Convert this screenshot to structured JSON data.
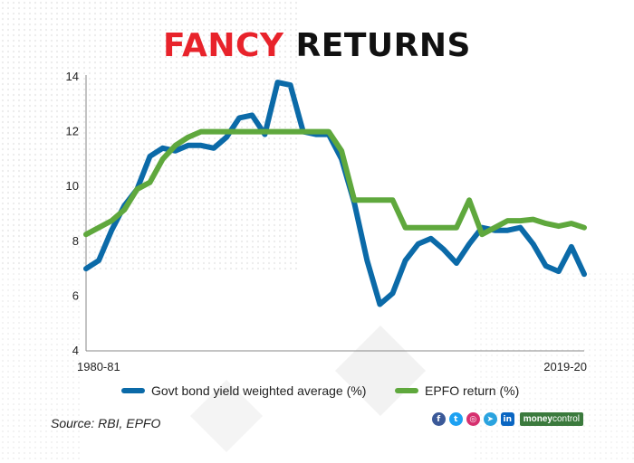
{
  "title": {
    "part1": "FANCY",
    "part2": "RETURNS"
  },
  "source": "Source: RBI, EPFO",
  "colors": {
    "govt": "#0b6aa8",
    "epfo": "#5fa83d",
    "title_red": "#e8232b",
    "axis": "#888888"
  },
  "social": {
    "icons": [
      {
        "name": "facebook-icon",
        "glyph": "f",
        "color": "#3b5998"
      },
      {
        "name": "twitter-icon",
        "glyph": "t",
        "color": "#1da1f2"
      },
      {
        "name": "instagram-icon",
        "glyph": "◎",
        "color": "#d6306f"
      },
      {
        "name": "telegram-icon",
        "glyph": "➤",
        "color": "#2aa3df"
      },
      {
        "name": "linkedin-icon",
        "glyph": "in",
        "color": "#0a66c2"
      }
    ],
    "brand_part1": "money",
    "brand_part2": "control"
  },
  "chart_data": {
    "type": "line",
    "x_first_label": "1980-81",
    "x_last_label": "2019-20",
    "x": [
      1980,
      1981,
      1982,
      1983,
      1984,
      1985,
      1986,
      1987,
      1988,
      1989,
      1990,
      1991,
      1992,
      1993,
      1994,
      1995,
      1996,
      1997,
      1998,
      1999,
      2000,
      2001,
      2002,
      2003,
      2004,
      2005,
      2006,
      2007,
      2008,
      2009,
      2010,
      2011,
      2012,
      2013,
      2014,
      2015,
      2016,
      2017,
      2018,
      2019
    ],
    "ylim": [
      4,
      14
    ],
    "yticks": [
      4,
      6,
      8,
      10,
      12,
      14
    ],
    "series": [
      {
        "name": "Govt bond yield weighted average (%)",
        "key": "govt",
        "values": [
          7.0,
          7.3,
          8.4,
          9.3,
          9.9,
          11.1,
          11.4,
          11.3,
          11.5,
          11.5,
          11.4,
          11.8,
          12.5,
          12.6,
          11.9,
          13.8,
          13.7,
          12.0,
          11.9,
          11.9,
          11.0,
          9.4,
          7.3,
          5.7,
          6.1,
          7.3,
          7.9,
          8.1,
          7.7,
          7.2,
          7.9,
          8.5,
          8.4,
          8.4,
          8.5,
          7.9,
          7.1,
          6.9,
          7.8,
          6.8
        ]
      },
      {
        "name": "EPFO return (%)",
        "key": "epfo",
        "values": [
          8.25,
          8.5,
          8.75,
          9.15,
          9.9,
          10.15,
          11.0,
          11.5,
          11.8,
          12.0,
          12.0,
          12.0,
          12.0,
          12.0,
          12.0,
          12.0,
          12.0,
          12.0,
          12.0,
          12.0,
          11.3,
          9.5,
          9.5,
          9.5,
          9.5,
          8.5,
          8.5,
          8.5,
          8.5,
          8.5,
          9.5,
          8.25,
          8.5,
          8.75,
          8.75,
          8.8,
          8.65,
          8.55,
          8.65,
          8.5
        ]
      }
    ],
    "legend_position": "bottom",
    "grid": false
  }
}
